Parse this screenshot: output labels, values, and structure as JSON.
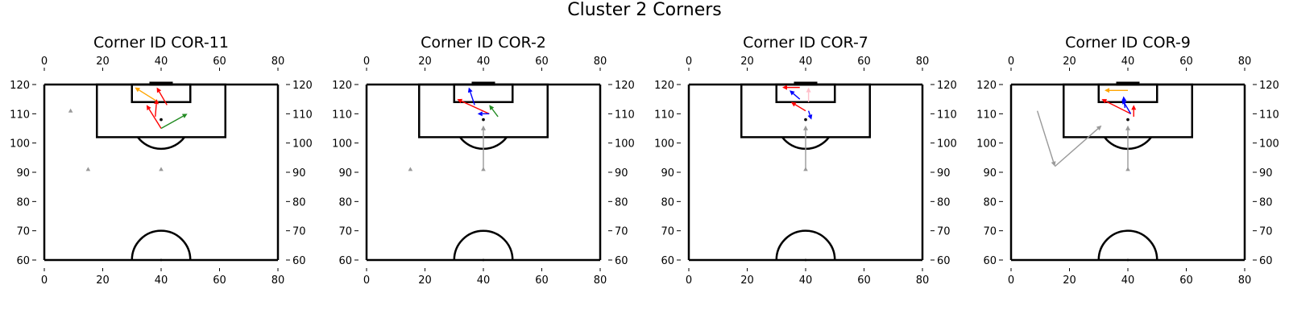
{
  "figure": {
    "title": "Cluster 2 Corners"
  },
  "chart_data": [
    {
      "type": "scatter",
      "title": "Corner ID COR-11",
      "xlim": [
        0,
        80
      ],
      "ylim": [
        60,
        120
      ],
      "xticks": [
        0,
        20,
        40,
        60,
        80
      ],
      "yticks": [
        60,
        70,
        80,
        90,
        100,
        110,
        120
      ],
      "ball": [
        40,
        108
      ],
      "points": [
        [
          9,
          111
        ],
        [
          15,
          91
        ],
        [
          40,
          91
        ]
      ],
      "arrows": [
        {
          "color": "#ffa500",
          "from": [
            39,
            114
          ],
          "to": [
            31,
            119
          ]
        },
        {
          "color": "#ff0000",
          "from": [
            38,
            109
          ],
          "to": [
            38.5,
            115
          ]
        },
        {
          "color": "#ff0000",
          "from": [
            42,
            113
          ],
          "to": [
            38.5,
            119
          ]
        },
        {
          "color": "#ff0000",
          "from": [
            40,
            105
          ],
          "to": [
            35,
            113
          ]
        },
        {
          "color": "#228b22",
          "from": [
            40,
            105
          ],
          "to": [
            49,
            110
          ]
        }
      ]
    },
    {
      "type": "scatter",
      "title": "Corner ID COR-2",
      "xlim": [
        0,
        80
      ],
      "ylim": [
        60,
        120
      ],
      "xticks": [
        0,
        20,
        40,
        60,
        80
      ],
      "yticks": [
        60,
        70,
        80,
        90,
        100,
        110,
        120
      ],
      "ball": [
        40,
        108
      ],
      "points": [
        [
          15,
          91
        ],
        [
          40,
          91
        ]
      ],
      "arrows": [
        {
          "color": "#999999",
          "from": [
            40,
            91
          ],
          "to": [
            40,
            106
          ]
        },
        {
          "color": "#0000ff",
          "from": [
            37,
            113
          ],
          "to": [
            35,
            119
          ]
        },
        {
          "color": "#ff0000",
          "from": [
            42,
            110
          ],
          "to": [
            31,
            115
          ]
        },
        {
          "color": "#0000ff",
          "from": [
            42,
            110
          ],
          "to": [
            38,
            110
          ]
        },
        {
          "color": "#228b22",
          "from": [
            45,
            109
          ],
          "to": [
            42,
            113
          ]
        }
      ]
    },
    {
      "type": "scatter",
      "title": "Corner ID COR-7",
      "xlim": [
        0,
        80
      ],
      "ylim": [
        60,
        120
      ],
      "xticks": [
        0,
        20,
        40,
        60,
        80
      ],
      "yticks": [
        60,
        70,
        80,
        90,
        100,
        110,
        120
      ],
      "ball": [
        40,
        108
      ],
      "points": [
        [
          40,
          91
        ]
      ],
      "arrows": [
        {
          "color": "#999999",
          "from": [
            40,
            91
          ],
          "to": [
            40,
            106
          ]
        },
        {
          "color": "#ff0000",
          "from": [
            38,
            119
          ],
          "to": [
            32,
            119
          ]
        },
        {
          "color": "#0000ff",
          "from": [
            38,
            115
          ],
          "to": [
            34.5,
            118
          ]
        },
        {
          "color": "#ff0000",
          "from": [
            40,
            111
          ],
          "to": [
            35,
            114
          ]
        },
        {
          "color": "#ffc0cb",
          "from": [
            41,
            114
          ],
          "to": [
            41,
            119
          ]
        },
        {
          "color": "#0000ff",
          "from": [
            41,
            111
          ],
          "to": [
            42,
            108
          ]
        }
      ]
    },
    {
      "type": "scatter",
      "title": "Corner ID COR-9",
      "xlim": [
        0,
        80
      ],
      "ylim": [
        60,
        120
      ],
      "xticks": [
        0,
        20,
        40,
        60,
        80
      ],
      "yticks": [
        60,
        70,
        80,
        90,
        100,
        110,
        120
      ],
      "ball": [
        40,
        108
      ],
      "points": [
        [
          40,
          91
        ]
      ],
      "arrows": [
        {
          "color": "#999999",
          "from": [
            9,
            111
          ],
          "to": [
            15,
            92
          ]
        },
        {
          "color": "#999999",
          "from": [
            15,
            92
          ],
          "to": [
            31,
            106
          ]
        },
        {
          "color": "#999999",
          "from": [
            40,
            91
          ],
          "to": [
            40,
            106
          ]
        },
        {
          "color": "#ffa500",
          "from": [
            40,
            118
          ],
          "to": [
            32,
            118
          ]
        },
        {
          "color": "#ff0000",
          "from": [
            41,
            110
          ],
          "to": [
            31,
            115
          ]
        },
        {
          "color": "#0000ff",
          "from": [
            41,
            110
          ],
          "to": [
            38,
            115
          ]
        },
        {
          "color": "#0000ff",
          "from": [
            39,
            112
          ],
          "to": [
            38.5,
            116
          ]
        },
        {
          "color": "#ff0000",
          "from": [
            42,
            109
          ],
          "to": [
            42,
            113
          ]
        }
      ]
    }
  ]
}
